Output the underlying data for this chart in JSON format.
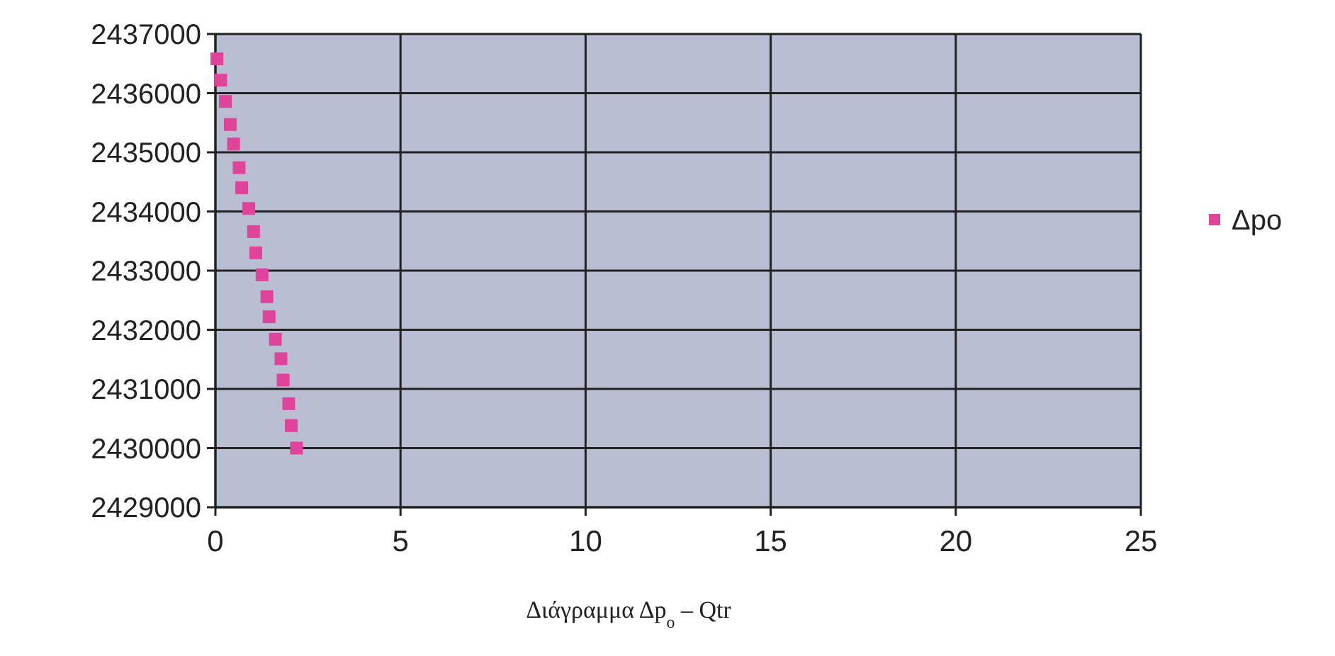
{
  "chart_data": {
    "type": "scatter",
    "xlabel": "Διάγραμμα Δp$_{o}$ – Qtr",
    "x": [
      0.04,
      0.14,
      0.27,
      0.4,
      0.49,
      0.64,
      0.71,
      0.9,
      1.03,
      1.09,
      1.26,
      1.39,
      1.45,
      1.62,
      1.77,
      1.83,
      1.98,
      2.05,
      2.19
    ],
    "series": [
      {
        "name": "Δpo",
        "color": "#e0449a",
        "values": [
          2436580,
          2436220,
          2435860,
          2435470,
          2435140,
          2434740,
          2434400,
          2434050,
          2433660,
          2433300,
          2432930,
          2432560,
          2432220,
          2431840,
          2431510,
          2431150,
          2430750,
          2430380,
          2430000
        ]
      }
    ],
    "xlim": [
      0,
      25
    ],
    "xticks": [
      0,
      5,
      10,
      15,
      20,
      25
    ],
    "ylim": [
      2429000,
      2437000
    ],
    "yticks": [
      2429000,
      2430000,
      2431000,
      2432000,
      2433000,
      2434000,
      2435000,
      2436000,
      2437000
    ],
    "grid": true,
    "legend": "right",
    "marker": "square"
  }
}
